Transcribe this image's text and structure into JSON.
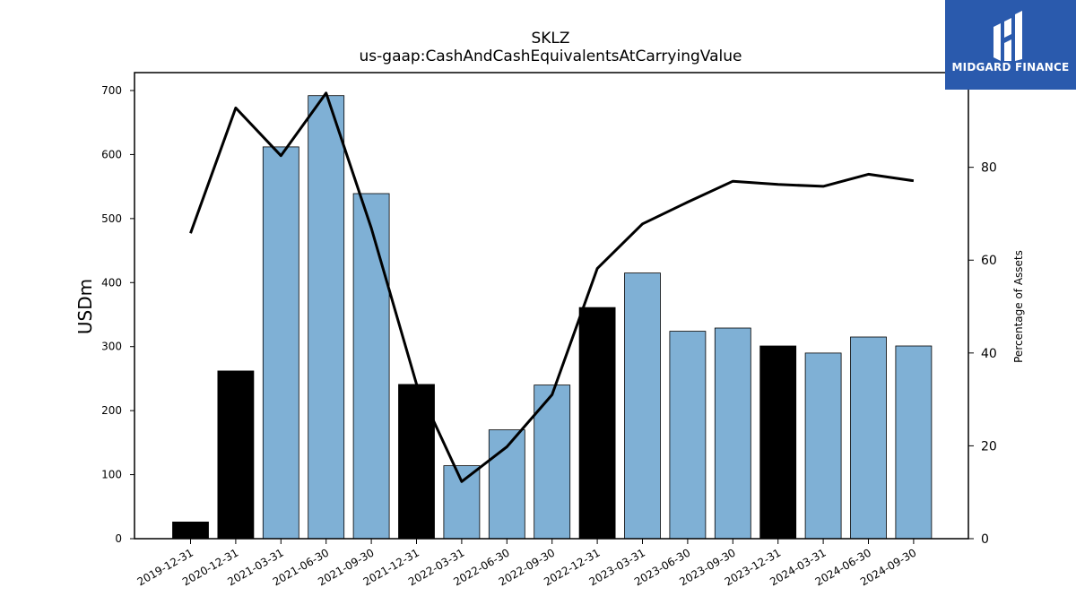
{
  "chart_data": {
    "type": "bar",
    "title": "SKLZ",
    "subtitle": "us-gaap:CashAndCashEquivalentsAtCarryingValue",
    "ylabel": "USDm",
    "ylabel_right": "Percentage of Assets",
    "ylim": [
      0,
      728
    ],
    "ylim_right": [
      0,
      100.4
    ],
    "yticks": [
      0,
      100,
      200,
      300,
      400,
      500,
      600,
      700
    ],
    "yticks_right": [
      0,
      20,
      40,
      60,
      80
    ],
    "categories": [
      "2019-12-31",
      "2020-12-31",
      "2021-03-31",
      "2021-06-30",
      "2021-09-30",
      "2021-12-31",
      "2022-03-31",
      "2022-06-30",
      "2022-09-30",
      "2022-12-31",
      "2023-03-31",
      "2023-06-30",
      "2023-09-30",
      "2023-12-31",
      "2024-03-31",
      "2024-06-30",
      "2024-09-30"
    ],
    "series": [
      {
        "kind": "bar",
        "values": [
          26,
          262,
          612,
          692,
          539,
          241,
          114,
          170,
          240,
          361,
          415,
          324,
          329,
          301,
          290,
          315,
          301
        ],
        "colors": [
          "#000000",
          "#000000",
          "#7fb0d5",
          "#7fb0d5",
          "#7fb0d5",
          "#000000",
          "#7fb0d5",
          "#7fb0d5",
          "#7fb0d5",
          "#000000",
          "#7fb0d5",
          "#7fb0d5",
          "#7fb0d5",
          "#000000",
          "#7fb0d5",
          "#7fb0d5",
          "#7fb0d5"
        ]
      },
      {
        "kind": "line",
        "axis": "right",
        "color": "#000000",
        "values": [
          65.8,
          92.8,
          82.5,
          96.0,
          66.9,
          33.3,
          12.3,
          19.8,
          31.0,
          58.2,
          67.8,
          72.5,
          77.0,
          76.3,
          75.9,
          78.5,
          77.1
        ]
      }
    ],
    "grid": false,
    "legend": "none"
  },
  "logo": {
    "text": "MIDGARD FINANCE",
    "background": "#2a5aad"
  }
}
